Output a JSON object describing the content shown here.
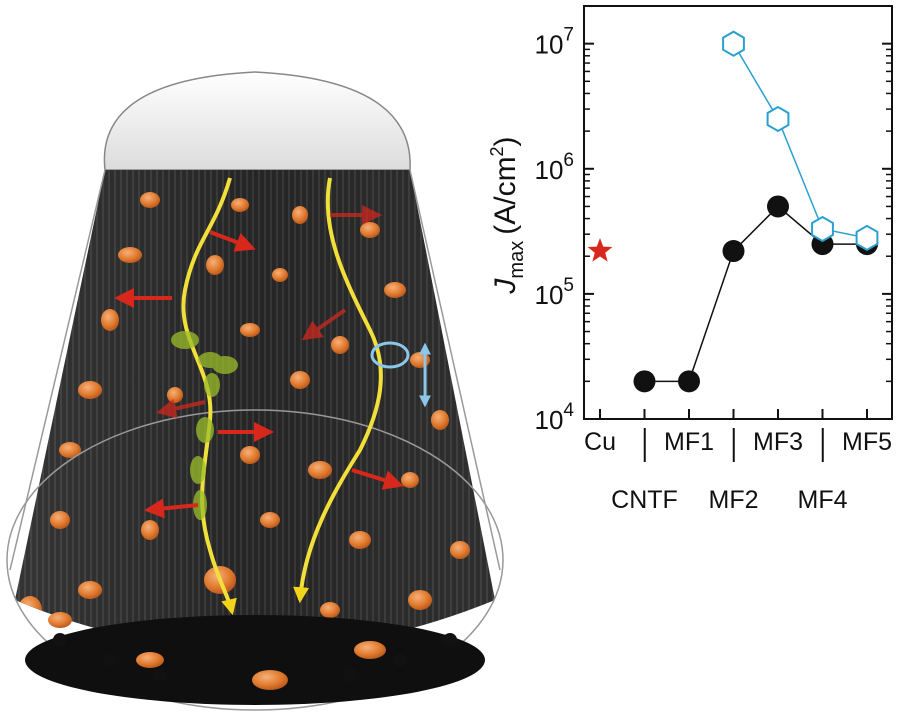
{
  "illustration": {
    "description_icon": "cnt-fiber-cone-icon",
    "colors": {
      "fiber": "#1c1c1c",
      "copper": "#e07a2e",
      "current_path": "#f2e03a",
      "heat_arrow": "#d8281c",
      "cnt_highlight": "#9bbd2a",
      "loop": "#8cc6ea"
    }
  },
  "chart_data": {
    "type": "scatter",
    "ylabel_main": "J",
    "ylabel_sub": "max",
    "ylabel_unit": "(A/cm",
    "ylabel_unit_sup": "2",
    "ylabel_unit_end": ")",
    "yscale": "log",
    "ylim": [
      10000,
      20000000
    ],
    "yticks": [
      {
        "base": "10",
        "exp": "4",
        "value": 10000
      },
      {
        "base": "10",
        "exp": "5",
        "value": 100000
      },
      {
        "base": "10",
        "exp": "6",
        "value": 1000000
      },
      {
        "base": "10",
        "exp": "7",
        "value": 10000000
      }
    ],
    "categories": [
      "Cu",
      "CNTF",
      "MF1",
      "MF2",
      "MF3",
      "MF4",
      "MF5"
    ],
    "category_label_row": [
      "upper",
      "lower",
      "upper",
      "lower",
      "upper",
      "lower",
      "upper"
    ],
    "series": [
      {
        "marker": "star",
        "color": "#d8281c",
        "values": [
          220000,
          null,
          null,
          null,
          null,
          null,
          null
        ],
        "connect": false
      },
      {
        "marker": "circle",
        "color": "#111111",
        "values": [
          null,
          20000,
          20000,
          220000,
          500000,
          250000,
          250000
        ],
        "connect": true
      },
      {
        "marker": "hexagon",
        "color": "#2aa0d0",
        "values": [
          null,
          null,
          null,
          10000000,
          2500000,
          330000,
          280000
        ],
        "connect": true
      }
    ],
    "grid": false,
    "legend": "none"
  }
}
